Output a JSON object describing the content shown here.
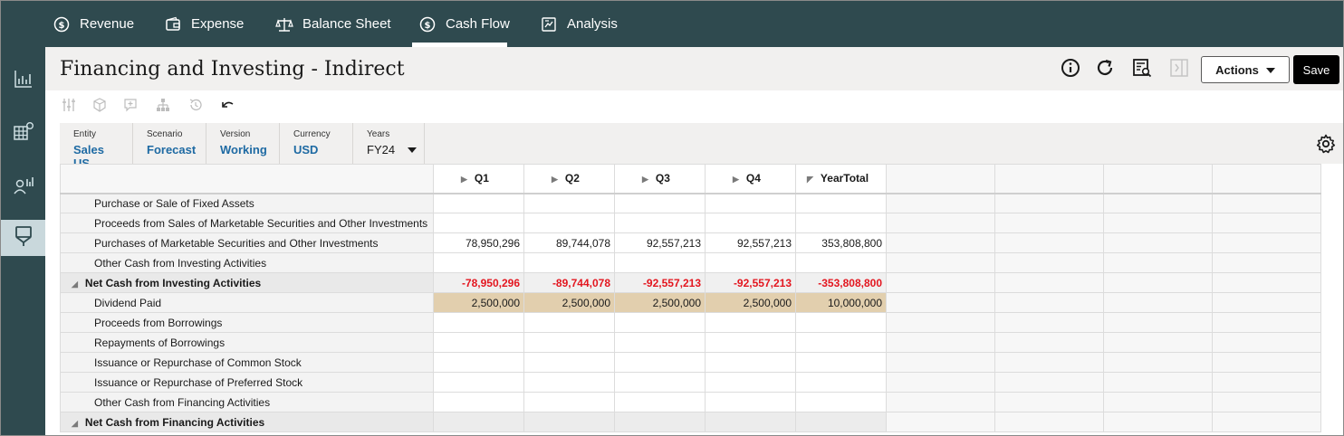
{
  "nav": {
    "tabs": [
      {
        "label": "Revenue",
        "icon": "dollar-circle-icon"
      },
      {
        "label": "Expense",
        "icon": "wallet-icon"
      },
      {
        "label": "Balance Sheet",
        "icon": "scale-icon"
      },
      {
        "label": "Cash Flow",
        "icon": "dollar-circle-icon",
        "active": true
      },
      {
        "label": "Analysis",
        "icon": "report-icon"
      }
    ]
  },
  "sidebar": {
    "items": [
      {
        "icon": "chart-icon"
      },
      {
        "icon": "grid-settings-icon"
      },
      {
        "icon": "user-chart-icon"
      },
      {
        "icon": "form-icon",
        "active": true
      }
    ]
  },
  "page": {
    "title": "Financing and Investing - Indirect",
    "actions_label": "Actions",
    "save_label": "Save"
  },
  "pov": {
    "entity": {
      "label": "Entity",
      "value": "Sales US"
    },
    "scenario": {
      "label": "Scenario",
      "value": "Forecast"
    },
    "version": {
      "label": "Version",
      "value": "Working"
    },
    "currency": {
      "label": "Currency",
      "value": "USD"
    },
    "years": {
      "label": "Years",
      "value": "FY24"
    }
  },
  "grid": {
    "columns": [
      "Q1",
      "Q2",
      "Q3",
      "Q4",
      "YearTotal"
    ],
    "rows": [
      {
        "label": "Purchase or Sale of Fixed Assets",
        "values": [
          "",
          "",
          "",
          "",
          ""
        ]
      },
      {
        "label": "Proceeds from Sales of Marketable Securities and Other Investments",
        "values": [
          "",
          "",
          "",
          "",
          ""
        ]
      },
      {
        "label": "Purchases of Marketable Securities and Other Investments",
        "values": [
          "78,950,296",
          "89,744,078",
          "92,557,213",
          "92,557,213",
          "353,808,800"
        ]
      },
      {
        "label": "Other Cash from Investing Activities",
        "values": [
          "",
          "",
          "",
          "",
          ""
        ]
      },
      {
        "label": "Net Cash from Investing Activities",
        "values": [
          "-78,950,296",
          "-89,744,078",
          "-92,557,213",
          "-92,557,213",
          "-353,808,800"
        ]
      },
      {
        "label": "Dividend Paid",
        "values": [
          "2,500,000",
          "2,500,000",
          "2,500,000",
          "2,500,000",
          "10,000,000"
        ]
      },
      {
        "label": "Proceeds from Borrowings",
        "values": [
          "",
          "",
          "",
          "",
          ""
        ]
      },
      {
        "label": "Repayments of Borrowings",
        "values": [
          "",
          "",
          "",
          "",
          ""
        ]
      },
      {
        "label": "Issuance or Repurchase of Common Stock",
        "values": [
          "",
          "",
          "",
          "",
          ""
        ]
      },
      {
        "label": "Issuance or Repurchase of Preferred Stock",
        "values": [
          "",
          "",
          "",
          "",
          ""
        ]
      },
      {
        "label": "Other Cash from Financing Activities",
        "values": [
          "",
          "",
          "",
          "",
          ""
        ]
      },
      {
        "label": "Net Cash from Financing Activities",
        "values": [
          "",
          "",
          "",
          "",
          ""
        ]
      }
    ]
  },
  "colors": {
    "nav_bg": "#2f4a4f",
    "negative": "#e3161f",
    "highlight_row": "#e2cfae",
    "link": "#1e6aa3"
  }
}
